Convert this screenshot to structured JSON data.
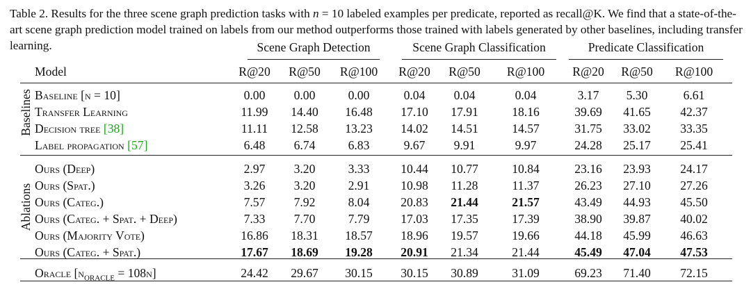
{
  "caption": {
    "prefix": "Table 2. Results for the three scene graph prediction tasks with ",
    "math": "n",
    "suffix": " = 10 labeled examples per predicate, reported as recall@K. We find that a state-of-the-art scene graph prediction model trained on labels from our method outperforms those trained with labels generated by other baselines, including transfer learning."
  },
  "table": {
    "groups": [
      "Scene Graph Detection",
      "Scene Graph Classification",
      "Predicate Classification"
    ],
    "model_header": "Model",
    "metric_headers": [
      "R@20",
      "R@50",
      "R@100",
      "R@20",
      "R@50",
      "R@100",
      "R@20",
      "R@50",
      "R@100"
    ],
    "section_labels": [
      "Baselines",
      "Ablations"
    ],
    "rows": [
      {
        "model": "Baseline [n = 10]",
        "cite": "",
        "values": [
          "0.00",
          "0.00",
          "0.00",
          "0.04",
          "0.04",
          "0.04",
          "3.17",
          "5.30",
          "6.61"
        ]
      },
      {
        "model": "Transfer Learning",
        "cite": "",
        "values": [
          "11.99",
          "14.40",
          "16.48",
          "17.10",
          "17.91",
          "18.16",
          "39.69",
          "41.65",
          "42.37"
        ]
      },
      {
        "model": "Decision tree ",
        "cite": "[38]",
        "values": [
          "11.11",
          "12.58",
          "13.23",
          "14.02",
          "14.51",
          "14.57",
          "31.75",
          "33.02",
          "33.35"
        ]
      },
      {
        "model": "Label propagation ",
        "cite": "[57]",
        "values": [
          "6.48",
          "6.74",
          "6.83",
          "9.67",
          "9.91",
          "9.97",
          "24.28",
          "25.17",
          "25.41"
        ]
      },
      {
        "model": "Ours (Deep)",
        "cite": "",
        "values": [
          "2.97",
          "3.20",
          "3.33",
          "10.44",
          "10.77",
          "10.84",
          "23.16",
          "23.93",
          "24.17"
        ]
      },
      {
        "model": "Ours (Spat.)",
        "cite": "",
        "values": [
          "3.26",
          "3.20",
          "2.91",
          "10.98",
          "11.28",
          "11.37",
          "26.23",
          "27.10",
          "27.26"
        ]
      },
      {
        "model": "Ours (Categ.)",
        "cite": "",
        "values": [
          "7.57",
          "7.92",
          "8.04",
          "20.83",
          "21.44",
          "21.57",
          "43.49",
          "44.93",
          "45.50"
        ]
      },
      {
        "model": "Ours (Categ. + Spat. + Deep)",
        "cite": "",
        "values": [
          "7.33",
          "7.70",
          "7.79",
          "17.03",
          "17.35",
          "17.39",
          "38.90",
          "39.87",
          "40.02"
        ]
      },
      {
        "model": "Ours (Majority Vote)",
        "cite": "",
        "values": [
          "16.86",
          "18.31",
          "18.57",
          "18.96",
          "19.57",
          "19.66",
          "44.18",
          "45.99",
          "46.63"
        ]
      },
      {
        "model": "Ours (Categ. + Spat.)",
        "cite": "",
        "values": [
          "17.67",
          "18.69",
          "19.28",
          "20.91",
          "21.34",
          "21.44",
          "45.49",
          "47.04",
          "47.53"
        ]
      },
      {
        "model": "Oracle [n",
        "subscript": "ORACLE",
        "model_suffix": " = 108n]",
        "cite": "",
        "values": [
          "24.42",
          "29.67",
          "30.15",
          "30.15",
          "30.89",
          "31.09",
          "69.23",
          "71.40",
          "72.15"
        ]
      }
    ],
    "bold_cells": [
      [
        6,
        4
      ],
      [
        6,
        5
      ],
      [
        9,
        0
      ],
      [
        9,
        1
      ],
      [
        9,
        2
      ],
      [
        9,
        3
      ],
      [
        9,
        6
      ],
      [
        9,
        7
      ],
      [
        9,
        8
      ]
    ]
  }
}
